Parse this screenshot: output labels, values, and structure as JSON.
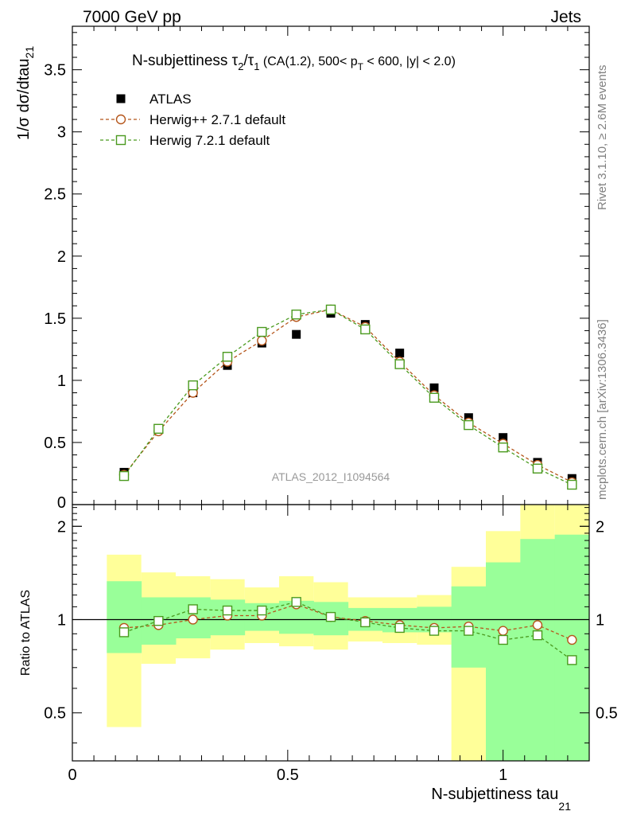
{
  "header": {
    "left": "7000 GeV pp",
    "right": "Jets"
  },
  "side_text": {
    "rivet": "Rivet 3.1.10, ≥ 2.6M events",
    "mcplots": "mcplots.cern.ch [arXiv:1306.3436]"
  },
  "analysis_id": "ATLAS_2012_I1094564",
  "chart_data": [
    {
      "type": "scatter",
      "title_parts": {
        "name": "N-subjettiness ",
        "tau": "τ",
        "sub2": "2",
        "slash": "/",
        "sub1": "1",
        "rest1": " (CA(1.2), 500< p",
        "T": "T",
        "rest2": " < 600, |y| < 2.0)"
      },
      "ylabel": "1/σ dσ/dtau",
      "ylabel_sub": "21",
      "xlim": [
        0,
        1.2
      ],
      "ylim": [
        0,
        3.85
      ],
      "yticks": [
        0.5,
        1,
        1.5,
        2,
        2.5,
        3,
        3.5
      ],
      "ytick_labels": [
        "0.5",
        "1",
        "1.5",
        "2",
        "2.5",
        "3",
        "3.5"
      ],
      "ytick_zero_label": "0",
      "x": [
        0.12,
        0.2,
        0.28,
        0.36,
        0.44,
        0.52,
        0.6,
        0.68,
        0.76,
        0.84,
        0.92,
        1.0,
        1.08,
        1.16
      ],
      "series": [
        {
          "name": "ATLAS",
          "color": "#000000",
          "marker": "filled-square",
          "values": [
            0.26,
            0.61,
            0.9,
            1.12,
            1.3,
            1.37,
            1.54,
            1.45,
            1.22,
            0.94,
            0.7,
            0.54,
            0.34,
            0.21
          ]
        },
        {
          "name": "Herwig++ 2.7.1 default",
          "color": "#b5561b",
          "marker": "open-circle",
          "values": [
            0.24,
            0.59,
            0.9,
            1.15,
            1.32,
            1.51,
            1.57,
            1.43,
            1.15,
            0.88,
            0.66,
            0.49,
            0.32,
            0.18
          ]
        },
        {
          "name": "Herwig 7.2.1 default",
          "color": "#4a9a1e",
          "marker": "open-square",
          "values": [
            0.23,
            0.61,
            0.96,
            1.19,
            1.39,
            1.53,
            1.57,
            1.41,
            1.13,
            0.86,
            0.64,
            0.46,
            0.29,
            0.16
          ]
        }
      ],
      "legend_position": "top-left"
    },
    {
      "type": "scatter",
      "ylabel": "Ratio to ATLAS",
      "xlabel": "N-subjettiness tau",
      "xlabel_sub": "21",
      "xlim": [
        0,
        1.2
      ],
      "ylim": [
        0.35,
        2.35
      ],
      "yticks": [
        0.5,
        1,
        2
      ],
      "ytick_labels": [
        "0.5",
        "1",
        "2"
      ],
      "xticks": [
        0,
        0.5,
        1
      ],
      "xtick_labels": [
        "0",
        "0.5",
        "1"
      ],
      "bin_edges": [
        0.08,
        0.16,
        0.24,
        0.32,
        0.4,
        0.48,
        0.56,
        0.64,
        0.72,
        0.8,
        0.88,
        0.96,
        1.04,
        1.12,
        1.2
      ],
      "band_outer": {
        "color": "#ffff99",
        "low": [
          0.45,
          0.72,
          0.75,
          0.8,
          0.84,
          0.82,
          0.8,
          0.85,
          0.84,
          0.83,
          0.35,
          0.35,
          0.35,
          0.35
        ],
        "high": [
          1.62,
          1.42,
          1.38,
          1.35,
          1.27,
          1.38,
          1.32,
          1.18,
          1.18,
          1.2,
          1.48,
          1.93,
          2.35,
          2.35
        ]
      },
      "band_inner": {
        "color": "#99ff99",
        "low": [
          0.78,
          0.83,
          0.87,
          0.89,
          0.92,
          0.9,
          0.89,
          0.92,
          0.91,
          0.91,
          0.7,
          0.35,
          0.35,
          0.35
        ],
        "high": [
          1.33,
          1.18,
          1.18,
          1.16,
          1.13,
          1.15,
          1.14,
          1.09,
          1.09,
          1.1,
          1.28,
          1.53,
          1.82,
          1.88
        ]
      },
      "series": [
        {
          "name": "Herwig++ 2.7.1 default",
          "color": "#b5561b",
          "marker": "open-circle",
          "values": [
            0.94,
            0.96,
            1.0,
            1.03,
            1.03,
            1.12,
            1.02,
            0.99,
            0.96,
            0.94,
            0.95,
            0.92,
            0.96,
            0.86
          ]
        },
        {
          "name": "Herwig 7.2.1 default",
          "color": "#4a9a1e",
          "marker": "open-square",
          "values": [
            0.91,
            0.99,
            1.08,
            1.07,
            1.07,
            1.14,
            1.02,
            0.98,
            0.94,
            0.92,
            0.92,
            0.86,
            0.89,
            0.74
          ]
        }
      ]
    }
  ]
}
